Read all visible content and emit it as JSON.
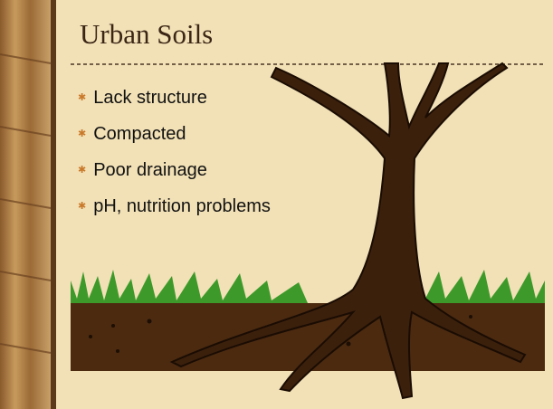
{
  "slide": {
    "title": "Urban Soils",
    "bullets": [
      "Lack structure",
      "Compacted",
      "Poor drainage",
      "pH, nutrition problems"
    ]
  }
}
